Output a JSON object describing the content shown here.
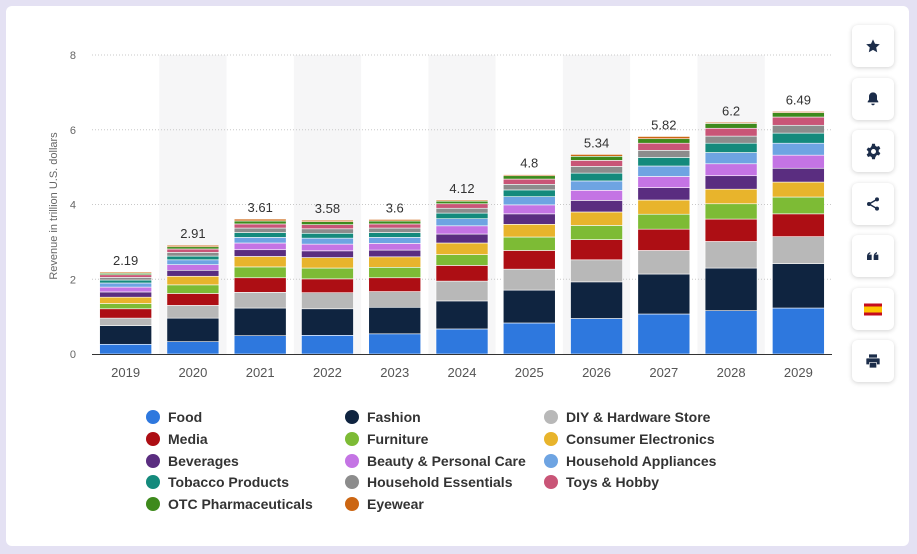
{
  "chart_data": {
    "type": "bar",
    "stacked": true,
    "categories": [
      "2019",
      "2020",
      "2021",
      "2022",
      "2023",
      "2024",
      "2025",
      "2026",
      "2027",
      "2028",
      "2029"
    ],
    "totals": [
      "2.19",
      "2.91",
      "3.61",
      "3.58",
      "3.6",
      "4.12",
      "4.8",
      "5.34",
      "5.82",
      "6.2",
      "6.49"
    ],
    "ylabel": "Revenue in trillion U.S. dollars",
    "ylim": [
      0,
      8
    ],
    "yticks": [
      "0",
      "2",
      "4",
      "6",
      "8"
    ],
    "grid": true,
    "legend_position": "bottom",
    "series": [
      {
        "name": "Food",
        "color": "#2e78de",
        "values": [
          0.26,
          0.33,
          0.49,
          0.5,
          0.54,
          0.67,
          0.83,
          0.95,
          1.07,
          1.16,
          1.23
        ]
      },
      {
        "name": "Fashion",
        "color": "#0f2440",
        "values": [
          0.5,
          0.63,
          0.74,
          0.71,
          0.71,
          0.75,
          0.88,
          0.98,
          1.07,
          1.14,
          1.19
        ]
      },
      {
        "name": "DIY & Hardware Store",
        "color": "#b8b8b8",
        "values": [
          0.2,
          0.34,
          0.42,
          0.43,
          0.42,
          0.53,
          0.56,
          0.59,
          0.63,
          0.71,
          0.72
        ]
      },
      {
        "name": "Media",
        "color": "#ad0e14",
        "values": [
          0.25,
          0.32,
          0.39,
          0.37,
          0.37,
          0.42,
          0.5,
          0.54,
          0.57,
          0.6,
          0.61
        ]
      },
      {
        "name": "Furniture",
        "color": "#7dbb35",
        "values": [
          0.14,
          0.23,
          0.29,
          0.29,
          0.28,
          0.29,
          0.36,
          0.38,
          0.4,
          0.41,
          0.45
        ]
      },
      {
        "name": "Consumer Electronics",
        "color": "#e8b42c",
        "values": [
          0.17,
          0.23,
          0.28,
          0.28,
          0.28,
          0.31,
          0.34,
          0.36,
          0.38,
          0.39,
          0.4
        ]
      },
      {
        "name": "Beverages",
        "color": "#5a2d80",
        "values": [
          0.14,
          0.16,
          0.18,
          0.18,
          0.18,
          0.24,
          0.28,
          0.31,
          0.33,
          0.36,
          0.37
        ]
      },
      {
        "name": "Beauty & Personal Care",
        "color": "#c474e4",
        "values": [
          0.13,
          0.15,
          0.18,
          0.18,
          0.18,
          0.22,
          0.24,
          0.27,
          0.3,
          0.32,
          0.35
        ]
      },
      {
        "name": "Household Appliances",
        "color": "#6ea4e2",
        "values": [
          0.11,
          0.13,
          0.15,
          0.16,
          0.16,
          0.19,
          0.22,
          0.25,
          0.28,
          0.3,
          0.32
        ]
      },
      {
        "name": "Tobacco Products",
        "color": "#148a7c",
        "values": [
          0.08,
          0.1,
          0.13,
          0.13,
          0.13,
          0.15,
          0.18,
          0.21,
          0.23,
          0.25,
          0.27
        ]
      },
      {
        "name": "Household Essentials",
        "color": "#8c8c8c",
        "values": [
          0.07,
          0.1,
          0.12,
          0.12,
          0.12,
          0.13,
          0.15,
          0.18,
          0.19,
          0.19,
          0.21
        ]
      },
      {
        "name": "Toys & Hobby",
        "color": "#c95577",
        "values": [
          0.07,
          0.09,
          0.11,
          0.11,
          0.11,
          0.12,
          0.14,
          0.16,
          0.19,
          0.21,
          0.22
        ]
      },
      {
        "name": "OTC Pharmaceuticals",
        "color": "#3e8a1c",
        "values": [
          0.04,
          0.06,
          0.08,
          0.08,
          0.08,
          0.07,
          0.09,
          0.11,
          0.12,
          0.13,
          0.12
        ]
      },
      {
        "name": "Eyewear",
        "color": "#cc6612",
        "values": [
          0.03,
          0.04,
          0.05,
          0.04,
          0.04,
          0.03,
          0.03,
          0.05,
          0.06,
          0.03,
          0.03
        ]
      }
    ]
  },
  "toolbar": {
    "icons": [
      "star-icon",
      "bell-icon",
      "gear-icon",
      "share-icon",
      "quote-icon",
      "spain-flag-icon",
      "print-icon"
    ]
  },
  "colors": {
    "background": "#e4e1f3",
    "card": "#ffffff",
    "grid": "#cccccc",
    "band": "#f6f6f7",
    "toolbar_icon": "#1c2d4a"
  }
}
